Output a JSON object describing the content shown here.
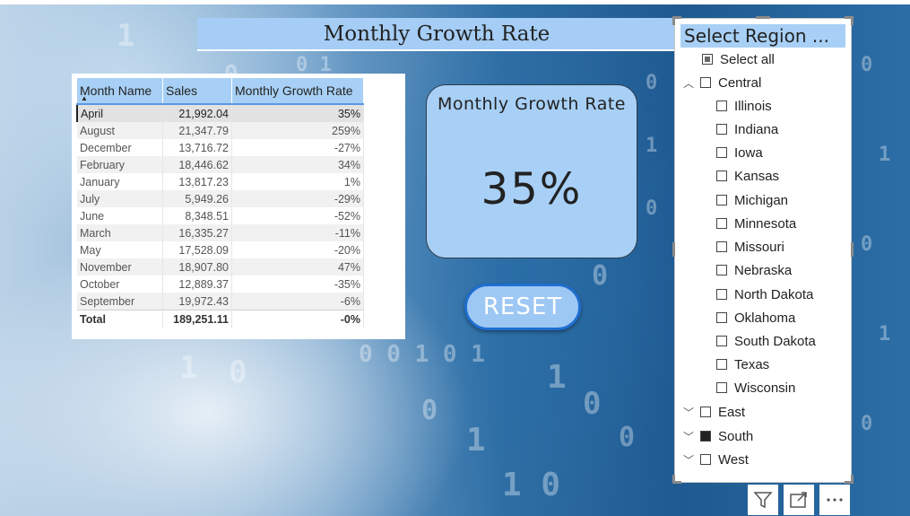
{
  "title": "Monthly Growth Rate",
  "table": {
    "headers": [
      "Month Name",
      "Sales",
      "Monthly Growth Rate"
    ],
    "rows": [
      {
        "month": "April",
        "sales": "21,992.04",
        "growth": "35%"
      },
      {
        "month": "August",
        "sales": "21,347.79",
        "growth": "259%"
      },
      {
        "month": "December",
        "sales": "13,716.72",
        "growth": "-27%"
      },
      {
        "month": "February",
        "sales": "18,446.62",
        "growth": "34%"
      },
      {
        "month": "January",
        "sales": "13,817.23",
        "growth": "1%"
      },
      {
        "month": "July",
        "sales": "5,949.26",
        "growth": "-29%"
      },
      {
        "month": "June",
        "sales": "8,348.51",
        "growth": "-52%"
      },
      {
        "month": "March",
        "sales": "16,335.27",
        "growth": "-11%"
      },
      {
        "month": "May",
        "sales": "17,528.09",
        "growth": "-20%"
      },
      {
        "month": "November",
        "sales": "18,907.80",
        "growth": "47%"
      },
      {
        "month": "October",
        "sales": "12,889.37",
        "growth": "-35%"
      },
      {
        "month": "September",
        "sales": "19,972.43",
        "growth": "-6%"
      }
    ],
    "total": {
      "label": "Total",
      "sales": "189,251.11",
      "growth": "-0%"
    }
  },
  "kpi": {
    "title": "Monthly Growth Rate",
    "value": "35%"
  },
  "reset": {
    "label": "RESET"
  },
  "slicer": {
    "header": "Select Region ...",
    "select_all": "Select all",
    "groups": [
      {
        "label": "Central",
        "expanded": true,
        "checked": false,
        "children": [
          "Illinois",
          "Indiana",
          "Iowa",
          "Kansas",
          "Michigan",
          "Minnesota",
          "Missouri",
          "Nebraska",
          "North Dakota",
          "Oklahoma",
          "South Dakota",
          "Texas",
          "Wisconsin"
        ]
      },
      {
        "label": "East",
        "expanded": false,
        "checked": false
      },
      {
        "label": "South",
        "expanded": false,
        "checked": true
      },
      {
        "label": "West",
        "expanded": false,
        "checked": false
      }
    ]
  },
  "icons": [
    "filter-icon",
    "focus-mode-icon",
    "more-options-icon"
  ],
  "colors": {
    "accent": "#a8d0f6",
    "button_border": "#1f6fd0"
  }
}
